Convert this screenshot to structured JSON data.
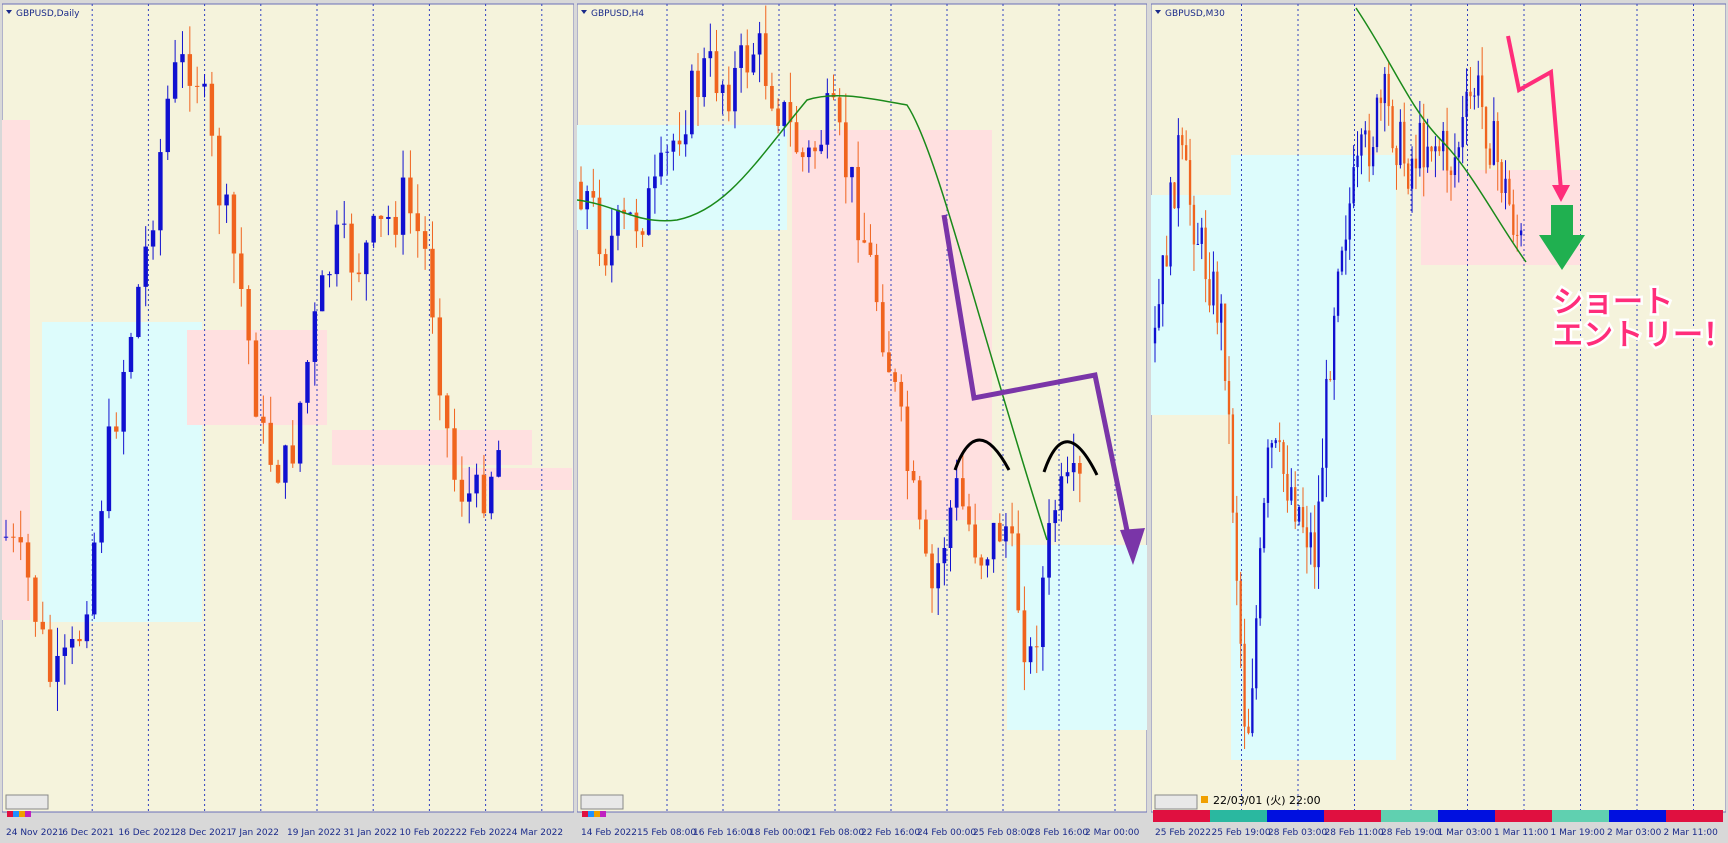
{
  "panels": [
    {
      "title": "GBPUSD,Daily",
      "x_labels": [
        "24 Nov 2021",
        "6 Dec 2021",
        "16 Dec 2021",
        "28 Dec 2021",
        "7 Jan 2022",
        "19 Jan 2022",
        "31 Jan 2022",
        "10 Feb 2022",
        "22 Feb 2022",
        "4 Mar 2022"
      ]
    },
    {
      "title": "GBPUSD,H4",
      "x_labels": [
        "14 Feb 2022",
        "15 Feb 08:00",
        "16 Feb 16:00",
        "18 Feb 00:00",
        "21 Feb 08:00",
        "22 Feb 16:00",
        "24 Feb 00:00",
        "25 Feb 08:00",
        "28 Feb 16:00",
        "2 Mar 00:00"
      ]
    },
    {
      "title": "GBPUSD,M30",
      "x_labels": [
        "25 Feb 2022",
        "25 Feb 19:00",
        "28 Feb 03:00",
        "28 Feb 11:00",
        "28 Feb 19:00",
        "1 Mar 03:00",
        "1 Mar 11:00",
        "1 Mar 19:00",
        "2 Mar 03:00",
        "2 Mar 11:00"
      ]
    }
  ],
  "status_time": "22/03/01 (火) 22:00",
  "annotation": [
    "ショート",
    "エントリー！"
  ]
}
